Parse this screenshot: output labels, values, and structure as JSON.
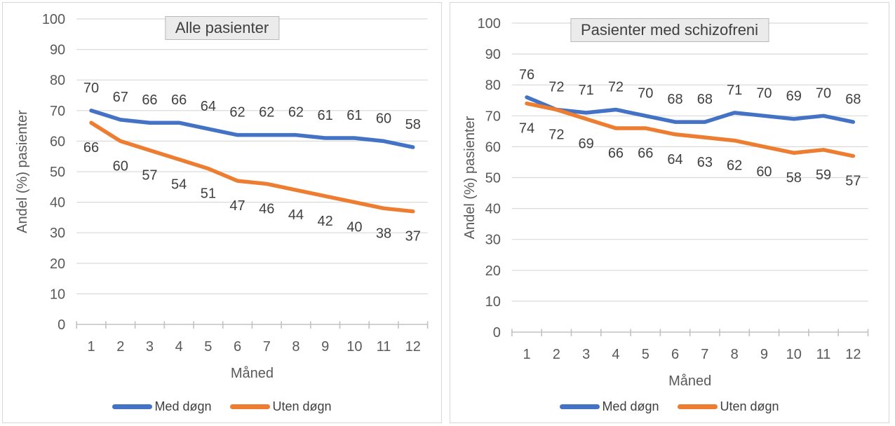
{
  "chart_data": [
    {
      "type": "line",
      "title": "Alle pasienter",
      "xlabel": "Måned",
      "ylabel": "Andel (%) pasienter",
      "x": [
        1,
        2,
        3,
        4,
        5,
        6,
        7,
        8,
        9,
        10,
        11,
        12
      ],
      "ylim": [
        0,
        100
      ],
      "y_ticks": [
        0,
        10,
        20,
        30,
        40,
        50,
        60,
        70,
        80,
        90,
        100
      ],
      "grid": true,
      "legend_position": "bottom",
      "data_labels": true,
      "series": [
        {
          "name": "Med døgn",
          "color": "#4472C4",
          "label_position": "above",
          "values": [
            70,
            67,
            66,
            66,
            64,
            62,
            62,
            62,
            61,
            61,
            60,
            58
          ]
        },
        {
          "name": "Uten døgn",
          "color": "#ED7D31",
          "label_position": "below",
          "values": [
            66,
            60,
            57,
            54,
            51,
            47,
            46,
            44,
            42,
            40,
            38,
            37
          ]
        }
      ]
    },
    {
      "type": "line",
      "title": "Pasienter med schizofreni",
      "xlabel": "Måned",
      "ylabel": "Andel (%) pasienter",
      "x": [
        1,
        2,
        3,
        4,
        5,
        6,
        7,
        8,
        9,
        10,
        11,
        12
      ],
      "ylim": [
        0,
        100
      ],
      "y_ticks": [
        0,
        10,
        20,
        30,
        40,
        50,
        60,
        70,
        80,
        90,
        100
      ],
      "grid": true,
      "legend_position": "bottom",
      "data_labels": true,
      "series": [
        {
          "name": "Med døgn",
          "color": "#4472C4",
          "label_position": "above",
          "values": [
            76,
            72,
            71,
            72,
            70,
            68,
            68,
            71,
            70,
            69,
            70,
            68
          ]
        },
        {
          "name": "Uten døgn",
          "color": "#ED7D31",
          "label_position": "below",
          "values": [
            74,
            72,
            69,
            66,
            66,
            64,
            63,
            62,
            60,
            58,
            59,
            57
          ]
        }
      ]
    }
  ]
}
